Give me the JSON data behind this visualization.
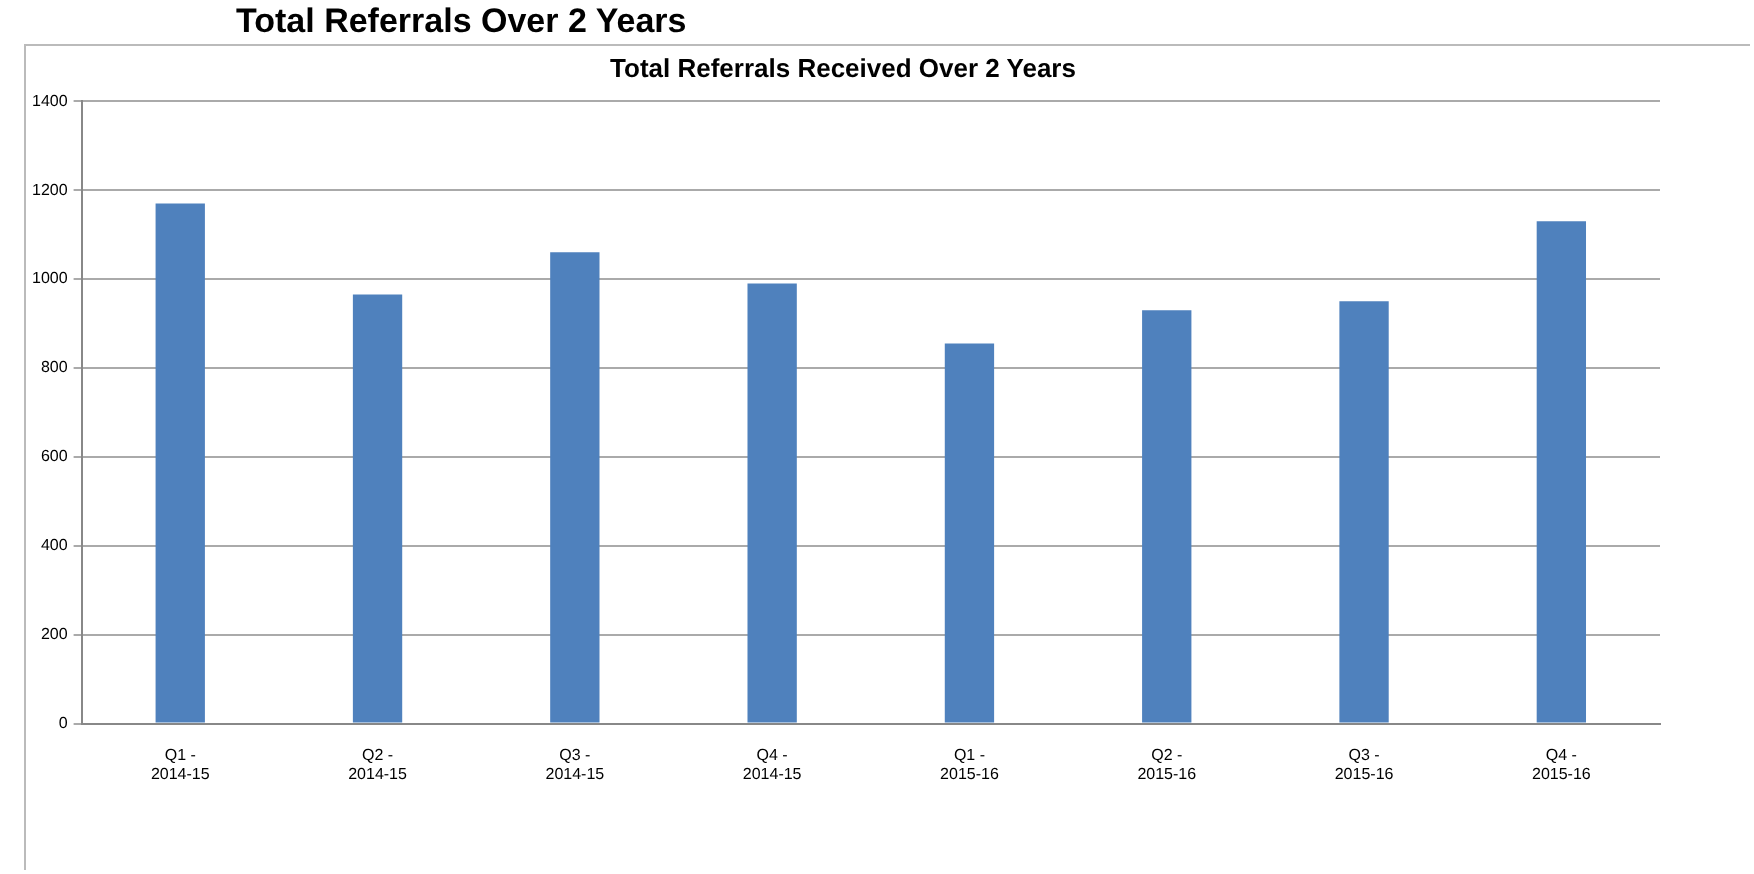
{
  "chart_data": {
    "type": "bar",
    "title": "Total Referrals Received Over 2 Years",
    "annotations": [
      "Total Referrals Over 2 Years"
    ],
    "categories": [
      "Q1 - 2014-15",
      "Q2 - 2014-15",
      "Q3 - 2014-15",
      "Q4 - 2014-15",
      "Q1 - 2015-16",
      "Q2 - 2015-16",
      "Q3 - 2015-16",
      "Q4 - 2015-16"
    ],
    "values": [
      1170,
      965,
      1060,
      990,
      855,
      930,
      950,
      1130
    ],
    "color": "#4f81bd",
    "ylim": [
      0,
      1400
    ],
    "yticks": [
      0,
      200,
      400,
      600,
      800,
      1000,
      1200,
      1400
    ],
    "grid": "y"
  }
}
